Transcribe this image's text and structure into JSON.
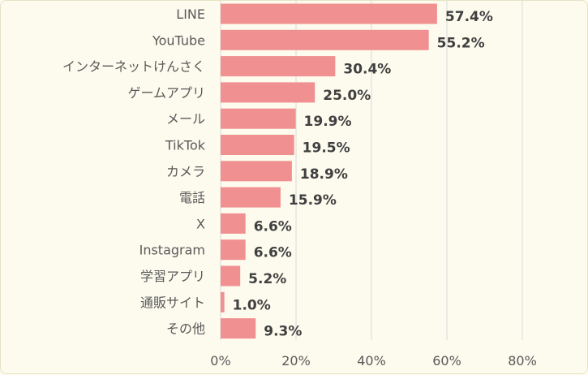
{
  "chart_data": {
    "type": "bar",
    "orientation": "horizontal",
    "title": "",
    "xlabel": "",
    "ylabel": "",
    "categories": [
      "LINE",
      "YouTube",
      "インターネットけんさく",
      "ゲームアプリ",
      "メール",
      "TikTok",
      "カメラ",
      "電話",
      "X",
      "Instagram",
      "学習アプリ",
      "通販サイト",
      "その他"
    ],
    "values": [
      57.4,
      55.2,
      30.4,
      25.0,
      19.9,
      19.5,
      18.9,
      15.9,
      6.6,
      6.6,
      5.2,
      1.0,
      9.3
    ],
    "value_labels": [
      "57.4%",
      "55.2%",
      "30.4%",
      "25.0%",
      "19.9%",
      "19.5%",
      "18.9%",
      "15.9%",
      "6.6%",
      "6.6%",
      "5.2%",
      "1.0%",
      "9.3%"
    ],
    "xlim": [
      0,
      80
    ],
    "xticks": [
      0,
      20,
      40,
      60,
      80
    ],
    "xtick_labels": [
      "0%",
      "20%",
      "40%",
      "60%",
      "80%"
    ],
    "grid": true,
    "legend": "none",
    "bar_color": "#f09090",
    "grid_color": "#d9d9d9"
  }
}
